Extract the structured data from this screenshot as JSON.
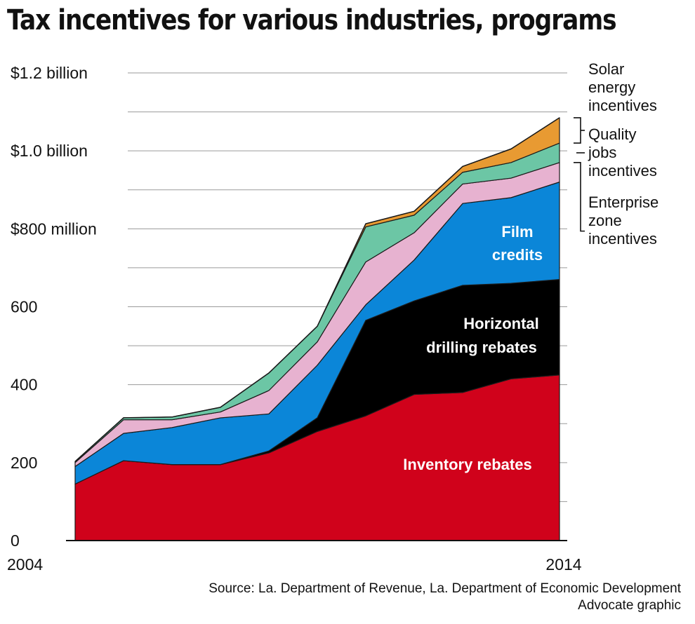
{
  "title": "Tax incentives for various industries, programs",
  "chart_data": {
    "type": "area",
    "stacked": true,
    "title": "Tax incentives for various industries, programs",
    "x": [
      2004,
      2005,
      2006,
      2007,
      2008,
      2009,
      2010,
      2011,
      2012,
      2013,
      2014
    ],
    "x_tick_labels": [
      "2004",
      "2014"
    ],
    "ylim": [
      0,
      1200
    ],
    "y_ticks": [
      {
        "value": 0,
        "label": "0"
      },
      {
        "value": 200,
        "label": "200"
      },
      {
        "value": 400,
        "label": "400"
      },
      {
        "value": 600,
        "label": "600"
      },
      {
        "value": 800,
        "label": "$800 million"
      },
      {
        "value": 1000,
        "label": "$1.0 billion"
      },
      {
        "value": 1200,
        "label": "$1.2 billion"
      }
    ],
    "grid": true,
    "series": [
      {
        "name": "Inventory rebates",
        "color": "#d0021b",
        "values": [
          145,
          205,
          195,
          195,
          225,
          280,
          320,
          375,
          380,
          415,
          425
        ]
      },
      {
        "name": "Horizontal drilling rebates",
        "color": "#000000",
        "values": [
          0,
          0,
          0,
          0,
          5,
          35,
          245,
          240,
          275,
          245,
          245
        ]
      },
      {
        "name": "Film credits",
        "color": "#0b86d8",
        "values": [
          45,
          70,
          95,
          120,
          95,
          135,
          40,
          105,
          210,
          220,
          250
        ]
      },
      {
        "name": "Enterprise zone incentives",
        "color": "#e7b2d0",
        "values": [
          10,
          35,
          20,
          15,
          60,
          60,
          110,
          70,
          50,
          50,
          50
        ]
      },
      {
        "name": "Quality jobs incentives",
        "color": "#6cc6a5",
        "values": [
          3,
          5,
          7,
          12,
          45,
          40,
          90,
          45,
          30,
          40,
          50
        ]
      },
      {
        "name": "Solar energy incentives",
        "color": "#e89a32",
        "values": [
          0,
          0,
          0,
          0,
          0,
          0,
          8,
          10,
          15,
          35,
          65
        ]
      }
    ],
    "annotations": {
      "solar": [
        "Solar",
        "energy",
        "incentives"
      ],
      "quality": [
        "Quality",
        "jobs",
        "incentives"
      ],
      "enterprise": [
        "Enterprise",
        "zone",
        "incentives"
      ],
      "film": [
        "Film",
        "credits"
      ],
      "drilling": [
        "Horizontal",
        "drilling rebates"
      ],
      "inventory": [
        "Inventory rebates"
      ]
    }
  },
  "source": {
    "line1": "Source: La. Department of Revenue, La. Department of Economic Development",
    "line2": "Advocate graphic"
  }
}
